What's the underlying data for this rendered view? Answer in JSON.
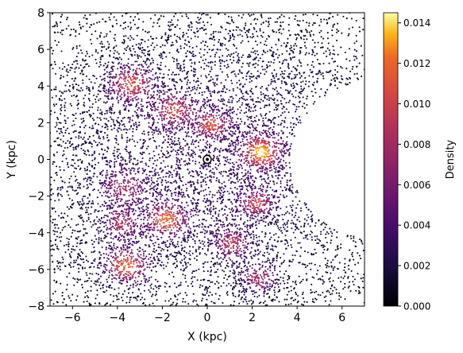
{
  "chart_data": {
    "type": "scatter",
    "xlabel": "X (kpc)",
    "ylabel": "Y (kpc)",
    "xlim": [
      -7,
      7
    ],
    "ylim": [
      -8,
      8
    ],
    "xticks": [
      -6,
      -4,
      -2,
      0,
      2,
      4,
      6
    ],
    "yticks": [
      -8,
      -6,
      -4,
      -2,
      0,
      2,
      4,
      6,
      8
    ],
    "grid": false,
    "colormap": "inferno",
    "colorbar": {
      "label": "Density",
      "range": [
        0,
        0.0145
      ],
      "ticks": [
        0.0,
        0.002,
        0.004,
        0.006,
        0.008,
        0.01,
        0.012,
        0.014
      ],
      "tick_labels": [
        "0.000",
        "0.002",
        "0.004",
        "0.006",
        "0.008",
        "0.010",
        "0.012",
        "0.014"
      ]
    },
    "sun_marker": {
      "x": 0,
      "y": 0
    },
    "excluded_region": {
      "center_x": 8.2,
      "center_y": 0,
      "radius": 4.5
    },
    "clusters": [
      {
        "x": 2.4,
        "y": 0.4,
        "spread": 0.55,
        "peak_density": 0.0145
      },
      {
        "x": -3.6,
        "y": -5.8,
        "spread": 0.6,
        "peak_density": 0.0135
      },
      {
        "x": -1.8,
        "y": -3.3,
        "spread": 0.55,
        "peak_density": 0.013
      },
      {
        "x": -3.4,
        "y": 4.1,
        "spread": 0.6,
        "peak_density": 0.012
      },
      {
        "x": -1.5,
        "y": 2.7,
        "spread": 0.55,
        "peak_density": 0.011
      },
      {
        "x": 0.2,
        "y": 1.9,
        "spread": 0.45,
        "peak_density": 0.0115
      },
      {
        "x": 2.2,
        "y": -2.4,
        "spread": 0.45,
        "peak_density": 0.0105
      },
      {
        "x": 1.1,
        "y": -4.6,
        "spread": 0.45,
        "peak_density": 0.0105
      },
      {
        "x": 2.3,
        "y": -6.5,
        "spread": 0.45,
        "peak_density": 0.01
      },
      {
        "x": -3.7,
        "y": -1.5,
        "spread": 0.6,
        "peak_density": 0.009
      },
      {
        "x": -3.8,
        "y": -3.5,
        "spread": 0.5,
        "peak_density": 0.0095
      }
    ],
    "background_density": 0.003,
    "density_falloff_radius_kpc": 9
  }
}
